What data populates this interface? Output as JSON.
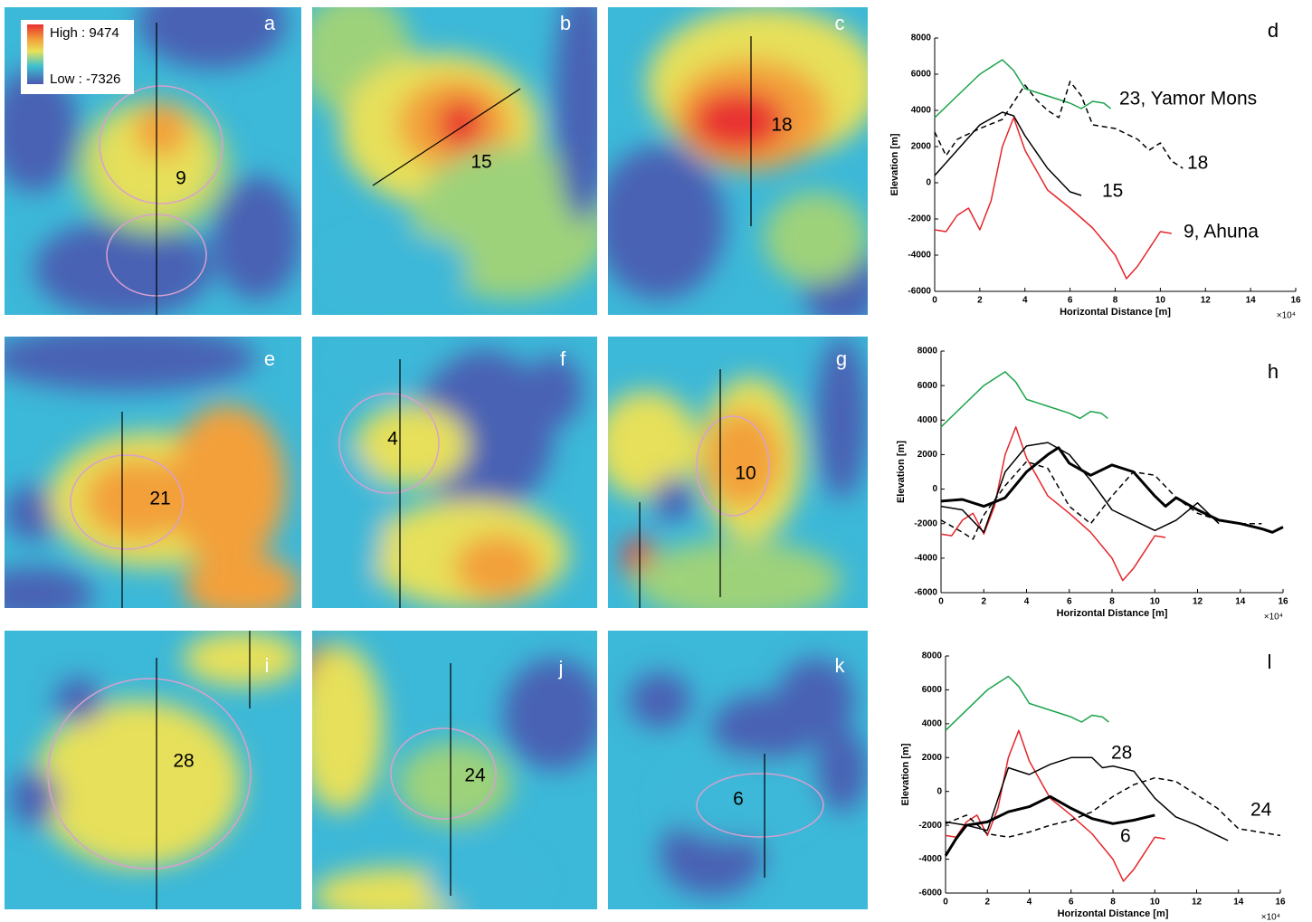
{
  "legend": {
    "high": "High : 9474",
    "low": "Low : -7326"
  },
  "maps": [
    {
      "letter": "a",
      "label": "9"
    },
    {
      "letter": "b",
      "label": "15"
    },
    {
      "letter": "c",
      "label": "18"
    },
    {
      "letter": "e",
      "label": "21"
    },
    {
      "letter": "f",
      "label": "4"
    },
    {
      "letter": "g",
      "label": "10"
    },
    {
      "letter": "i",
      "label": "28"
    },
    {
      "letter": "j",
      "label": "24"
    },
    {
      "letter": "k",
      "label": "6"
    }
  ],
  "chart_data": [
    {
      "type": "line",
      "panel": "d",
      "x_label": "Horizontal Distance [m]",
      "x_multiplier": "×10⁴",
      "y_label": "Elevation [m]",
      "xlim": [
        0,
        16
      ],
      "xticks": [
        0,
        2,
        4,
        6,
        8,
        10,
        12,
        14,
        16
      ],
      "ylim": [
        -6000,
        8000
      ],
      "yticks": [
        -6000,
        -4000,
        -2000,
        0,
        2000,
        4000,
        6000,
        8000
      ],
      "series": [
        {
          "name": "23, Yamor Mons",
          "color": "#1aa34a",
          "style": "solid",
          "x": [
            0,
            1,
            2,
            3,
            3.5,
            4,
            5,
            6,
            6.5,
            7,
            7.5,
            7.8
          ],
          "values": [
            3600,
            4800,
            6000,
            6800,
            6200,
            5200,
            4800,
            4400,
            4100,
            4500,
            4400,
            4100
          ]
        },
        {
          "name": "18",
          "color": "#000000",
          "style": "dashed",
          "x": [
            0,
            0.5,
            1,
            2,
            3,
            4,
            4.5,
            5,
            5.5,
            6,
            6.5,
            7,
            8,
            9,
            9.5,
            10,
            10.5,
            11
          ],
          "values": [
            2800,
            1500,
            2400,
            3000,
            3500,
            5400,
            4600,
            4000,
            3600,
            5600,
            4800,
            3200,
            3000,
            2400,
            1800,
            2200,
            1200,
            800
          ]
        },
        {
          "name": "15",
          "color": "#000000",
          "style": "solid",
          "x": [
            0,
            1,
            2,
            3,
            3.5,
            4,
            5,
            6,
            6.5
          ],
          "values": [
            400,
            1800,
            3200,
            3900,
            3700,
            2600,
            800,
            -500,
            -700
          ]
        },
        {
          "name": "9, Ahuna",
          "color": "#e5262b",
          "style": "solid",
          "x": [
            0,
            0.5,
            1,
            1.5,
            2,
            2.5,
            3,
            3.5,
            4,
            5,
            6,
            7,
            8,
            8.5,
            9,
            10,
            10.5
          ],
          "values": [
            -2600,
            -2700,
            -1800,
            -1400,
            -2600,
            -1000,
            2000,
            3600,
            1800,
            -400,
            -1400,
            -2500,
            -4000,
            -5300,
            -4600,
            -2700,
            -2800
          ]
        }
      ]
    },
    {
      "type": "line",
      "panel": "h",
      "x_label": "Horizontal Distance [m]",
      "x_multiplier": "×10⁴",
      "y_label": "Elevation [m]",
      "xlim": [
        0,
        16
      ],
      "xticks": [
        0,
        2,
        4,
        6,
        8,
        10,
        12,
        14,
        16
      ],
      "ylim": [
        -6000,
        8000
      ],
      "yticks": [
        -6000,
        -4000,
        -2000,
        0,
        2000,
        4000,
        6000,
        8000
      ],
      "series": [
        {
          "color": "#1aa34a",
          "style": "solid",
          "x": [
            0,
            1,
            2,
            3,
            3.5,
            4,
            5,
            6,
            6.5,
            7,
            7.5,
            7.8
          ],
          "values": [
            3600,
            4800,
            6000,
            6800,
            6200,
            5200,
            4800,
            4400,
            4100,
            4500,
            4400,
            4100
          ]
        },
        {
          "color": "#e5262b",
          "style": "solid",
          "x": [
            0,
            0.5,
            1,
            1.5,
            2,
            2.5,
            3,
            3.5,
            4,
            5,
            6,
            7,
            8,
            8.5,
            9,
            10,
            10.5
          ],
          "values": [
            -2600,
            -2700,
            -1800,
            -1400,
            -2600,
            -1000,
            2000,
            3600,
            1800,
            -400,
            -1400,
            -2500,
            -4000,
            -5300,
            -4600,
            -2700,
            -2800
          ]
        },
        {
          "color": "#000000",
          "style": "solid",
          "x": [
            0,
            1,
            2,
            3,
            4,
            5,
            6,
            7,
            8,
            9,
            10,
            11,
            12,
            13
          ],
          "values": [
            -1000,
            -1200,
            -2500,
            1000,
            2500,
            2700,
            2000,
            500,
            -1200,
            -1800,
            -2400,
            -1800,
            -800,
            -2000
          ]
        },
        {
          "color": "#000000",
          "style": "bold",
          "x": [
            0,
            1,
            2,
            3,
            4,
            5,
            5.5,
            6,
            7,
            8,
            9,
            10,
            10.5,
            11,
            12,
            13,
            14,
            15,
            15.5,
            16
          ],
          "values": [
            -700,
            -600,
            -1000,
            -500,
            1000,
            2000,
            2400,
            1500,
            800,
            1400,
            1000,
            -400,
            -1000,
            -500,
            -1200,
            -1800,
            -2000,
            -2300,
            -2500,
            -2200
          ]
        },
        {
          "color": "#000000",
          "style": "dashed",
          "x": [
            0,
            1,
            1.5,
            2,
            3,
            4,
            5,
            6,
            7,
            8,
            9,
            10,
            11,
            12,
            13,
            14,
            15
          ],
          "values": [
            -1800,
            -2500,
            -2900,
            -1500,
            200,
            1600,
            1200,
            -1000,
            -2000,
            -400,
            1000,
            800,
            -500,
            -1400,
            -1800,
            -2000,
            -2000
          ]
        }
      ]
    },
    {
      "type": "line",
      "panel": "l",
      "x_label": "Horizontal Distance [m]",
      "x_multiplier": "×10⁴",
      "y_label": "Elevation [m]",
      "xlim": [
        0,
        16
      ],
      "xticks": [
        0,
        2,
        4,
        6,
        8,
        10,
        12,
        14,
        16
      ],
      "ylim": [
        -6000,
        8000
      ],
      "yticks": [
        -6000,
        -4000,
        -2000,
        0,
        2000,
        4000,
        6000,
        8000
      ],
      "series": [
        {
          "color": "#1aa34a",
          "style": "solid",
          "x": [
            0,
            1,
            2,
            3,
            3.5,
            4,
            5,
            6,
            6.5,
            7,
            7.5,
            7.8
          ],
          "values": [
            3600,
            4800,
            6000,
            6800,
            6200,
            5200,
            4800,
            4400,
            4100,
            4500,
            4400,
            4100
          ]
        },
        {
          "color": "#e5262b",
          "style": "solid",
          "x": [
            0,
            0.5,
            1,
            1.5,
            2,
            2.5,
            3,
            3.5,
            4,
            5,
            6,
            7,
            8,
            8.5,
            9,
            10,
            10.5
          ],
          "values": [
            -2600,
            -2700,
            -1800,
            -1400,
            -2600,
            -1000,
            2000,
            3600,
            1800,
            -400,
            -1400,
            -2500,
            -4000,
            -5300,
            -4600,
            -2700,
            -2800
          ]
        },
        {
          "name": "28",
          "color": "#000000",
          "style": "solid",
          "x": [
            0,
            1,
            2,
            3,
            4,
            5,
            6,
            7,
            7.5,
            8,
            9,
            10,
            11,
            12,
            13,
            13.5
          ],
          "values": [
            -1800,
            -2000,
            -2300,
            1400,
            1000,
            1600,
            2000,
            2000,
            1400,
            1500,
            1200,
            -400,
            -1500,
            -2000,
            -2600,
            -2900
          ]
        },
        {
          "name": "6",
          "color": "#000000",
          "style": "bold",
          "x": [
            0,
            0.5,
            1,
            2,
            3,
            4,
            5,
            6,
            7,
            8,
            9,
            10
          ],
          "values": [
            -3800,
            -2800,
            -2000,
            -1800,
            -1200,
            -900,
            -300,
            -1000,
            -1600,
            -1900,
            -1700,
            -1400
          ]
        },
        {
          "name": "24",
          "color": "#000000",
          "style": "dashed",
          "x": [
            0,
            1,
            2,
            3,
            4,
            5,
            6,
            7,
            8,
            9,
            10,
            11,
            12,
            13,
            14,
            15,
            16
          ],
          "values": [
            -1900,
            -1400,
            -2500,
            -2700,
            -2400,
            -2000,
            -1700,
            -1200,
            -300,
            400,
            800,
            600,
            -200,
            -1000,
            -2200,
            -2400,
            -2600
          ]
        }
      ]
    }
  ]
}
